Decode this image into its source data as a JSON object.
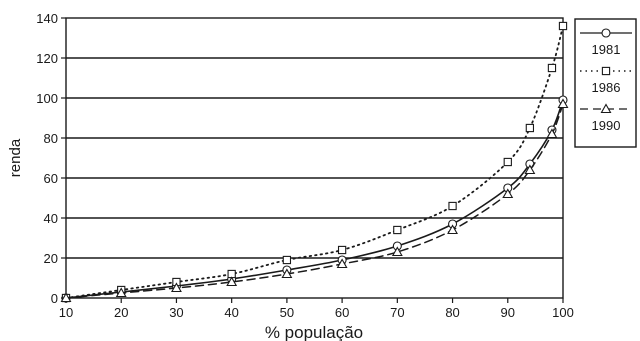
{
  "chart_data": {
    "type": "line",
    "xlabel": "% população",
    "ylabel": "renda",
    "xlim": [
      10,
      100
    ],
    "ylim": [
      0,
      140
    ],
    "x_ticks": [
      "10",
      "20",
      "30",
      "40",
      "50",
      "60",
      "70",
      "80",
      "90",
      "100"
    ],
    "y_ticks": [
      "0",
      "20",
      "40",
      "60",
      "80",
      "100",
      "120",
      "140"
    ],
    "grid": "horizontal",
    "legend_position": "right",
    "series": [
      {
        "name": "1981",
        "marker": "circle",
        "line_style": "solid",
        "x": [
          10,
          20,
          30,
          40,
          50,
          60,
          70,
          80,
          90,
          94,
          98,
          100
        ],
        "y": [
          0,
          3,
          6,
          9.5,
          14,
          19,
          26,
          37,
          55,
          67,
          84,
          99
        ]
      },
      {
        "name": "1986",
        "marker": "square",
        "line_style": "dotted",
        "x": [
          10,
          20,
          30,
          40,
          50,
          60,
          70,
          80,
          90,
          94,
          98,
          100
        ],
        "y": [
          0,
          4,
          8,
          12,
          19,
          24,
          34,
          46,
          68,
          85,
          115,
          136
        ]
      },
      {
        "name": "1990",
        "marker": "triangle",
        "line_style": "dashed",
        "x": [
          10,
          20,
          30,
          40,
          50,
          60,
          70,
          80,
          90,
          94,
          98,
          100
        ],
        "y": [
          0,
          2.5,
          5,
          8,
          12,
          17,
          23,
          34,
          52,
          64,
          82,
          97
        ]
      }
    ]
  }
}
